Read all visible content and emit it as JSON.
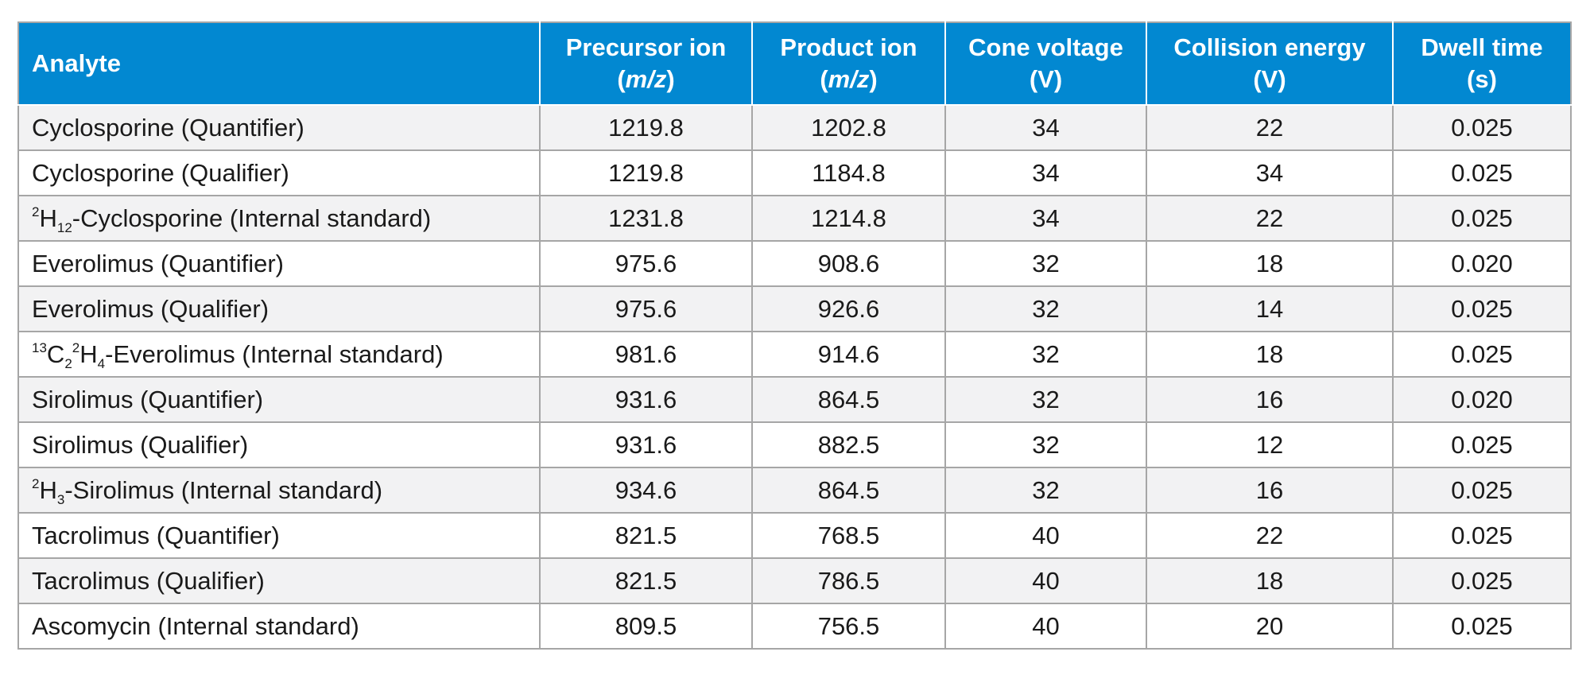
{
  "table": {
    "headers": {
      "analyte": "Analyte",
      "precursor": {
        "line1": "Precursor ion",
        "open": "(",
        "unit": "m/z",
        "close": ")"
      },
      "product": {
        "line1": "Product ion",
        "open": "(",
        "unit": "m/z",
        "close": ")"
      },
      "cone": {
        "line1": "Cone voltage",
        "line2": "(V)"
      },
      "collision": {
        "line1": "Collision energy",
        "line2": "(V)"
      },
      "dwell": {
        "line1": "Dwell time",
        "line2": "(s)"
      }
    },
    "rows": [
      {
        "analyte": {
          "text": "Cyclosporine (Quantifier)"
        },
        "precursor": "1219.8",
        "product": "1202.8",
        "cone": "34",
        "collision": "22",
        "dwell": "0.025"
      },
      {
        "analyte": {
          "text": "Cyclosporine (Qualifier)"
        },
        "precursor": "1219.8",
        "product": "1184.8",
        "cone": "34",
        "collision": "34",
        "dwell": "0.025"
      },
      {
        "analyte": {
          "sup1": "2",
          "el1": "H",
          "sub1": "12",
          "rest": "-Cyclosporine (Internal standard)"
        },
        "precursor": "1231.8",
        "product": "1214.8",
        "cone": "34",
        "collision": "22",
        "dwell": "0.025"
      },
      {
        "analyte": {
          "text": "Everolimus (Quantifier)"
        },
        "precursor": "975.6",
        "product": "908.6",
        "cone": "32",
        "collision": "18",
        "dwell": "0.020"
      },
      {
        "analyte": {
          "text": "Everolimus (Qualifier)"
        },
        "precursor": "975.6",
        "product": "926.6",
        "cone": "32",
        "collision": "14",
        "dwell": "0.025"
      },
      {
        "analyte": {
          "sup1": "13",
          "el1": "C",
          "sub1": "2",
          "sup2": "2",
          "el2": "H",
          "sub2": "4",
          "rest": "-Everolimus (Internal standard)"
        },
        "precursor": "981.6",
        "product": "914.6",
        "cone": "32",
        "collision": "18",
        "dwell": "0.025"
      },
      {
        "analyte": {
          "text": "Sirolimus (Quantifier)"
        },
        "precursor": "931.6",
        "product": "864.5",
        "cone": "32",
        "collision": "16",
        "dwell": "0.020"
      },
      {
        "analyte": {
          "text": "Sirolimus (Qualifier)"
        },
        "precursor": "931.6",
        "product": "882.5",
        "cone": "32",
        "collision": "12",
        "dwell": "0.025"
      },
      {
        "analyte": {
          "sup1": "2",
          "el1": "H",
          "sub1": "3",
          "rest": "-Sirolimus (Internal standard)"
        },
        "precursor": "934.6",
        "product": "864.5",
        "cone": "32",
        "collision": "16",
        "dwell": "0.025"
      },
      {
        "analyte": {
          "text": "Tacrolimus (Quantifier)"
        },
        "precursor": "821.5",
        "product": "768.5",
        "cone": "40",
        "collision": "22",
        "dwell": "0.025"
      },
      {
        "analyte": {
          "text": "Tacrolimus (Qualifier)"
        },
        "precursor": "821.5",
        "product": "786.5",
        "cone": "40",
        "collision": "18",
        "dwell": "0.025"
      },
      {
        "analyte": {
          "text": "Ascomycin (Internal standard)"
        },
        "precursor": "809.5",
        "product": "756.5",
        "cone": "40",
        "collision": "20",
        "dwell": "0.025"
      }
    ]
  },
  "colors": {
    "header_bg": "#0288d1",
    "header_text": "#ffffff",
    "row_alt_bg": "#f2f2f3",
    "border": "#a6a6a6"
  }
}
